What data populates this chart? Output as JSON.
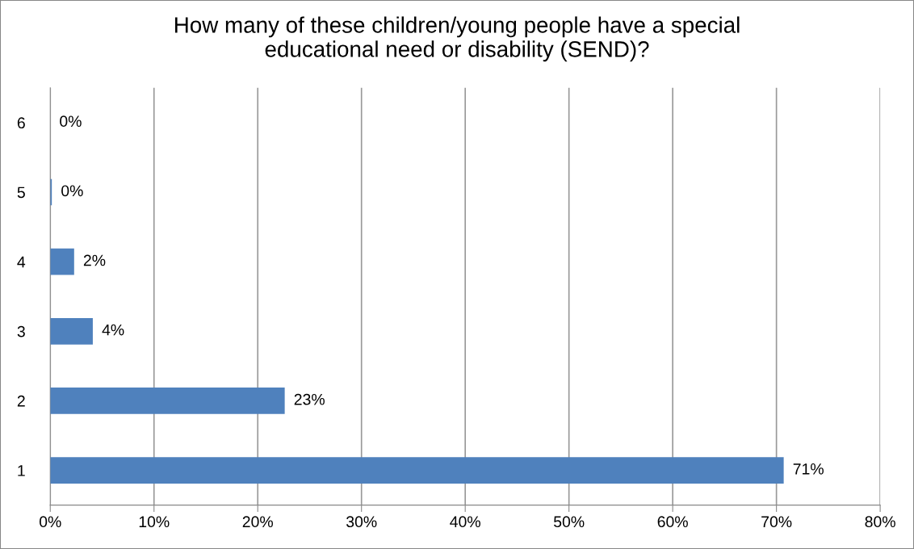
{
  "chart_data": {
    "type": "bar",
    "orientation": "horizontal",
    "title": "How many of these children/young people have a special\neducational need or disability (SEND)?",
    "categories": [
      "6",
      "5",
      "4",
      "3",
      "2",
      "1"
    ],
    "values": [
      0,
      0.15,
      2.3,
      4.1,
      22.6,
      70.7
    ],
    "value_labels": [
      "0%",
      "0%",
      "2%",
      "4%",
      "23%",
      "71%"
    ],
    "color": "#4f81bd",
    "xlim": [
      0,
      80
    ],
    "xticks": [
      {
        "value": 0,
        "label": "0%"
      },
      {
        "value": 10,
        "label": "10%"
      },
      {
        "value": 20,
        "label": "20%"
      },
      {
        "value": 30,
        "label": "30%"
      },
      {
        "value": 40,
        "label": "40%"
      },
      {
        "value": 50,
        "label": "50%"
      },
      {
        "value": 60,
        "label": "60%"
      },
      {
        "value": 70,
        "label": "70%"
      },
      {
        "value": 80,
        "label": "80%"
      }
    ],
    "grid": "x",
    "legend": false
  }
}
